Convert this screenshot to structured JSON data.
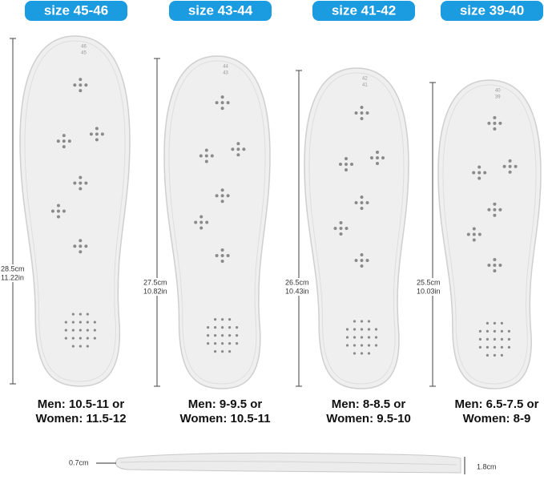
{
  "sizes": [
    {
      "label": "size 45-46",
      "top": [
        "46",
        "45"
      ],
      "length_cm": "28.5cm",
      "length_in": "11.22in",
      "men": "Men: 10.5-11 or",
      "women": "Women: 11.5-12"
    },
    {
      "label": "size 43-44",
      "top": [
        "44",
        "43"
      ],
      "length_cm": "27.5cm",
      "length_in": "10.82in",
      "men": "Men: 9-9.5 or",
      "women": "Women: 10.5-11"
    },
    {
      "label": "size 41-42",
      "top": [
        "42",
        "41"
      ],
      "length_cm": "26.5cm",
      "length_in": "10.43in",
      "men": "Men: 8-8.5 or",
      "women": "Women: 9.5-10"
    },
    {
      "label": "size 39-40",
      "top": [
        "40",
        "39"
      ],
      "length_cm": "25.5cm",
      "length_in": "10.03in",
      "men": "Men: 6.5-7.5 or",
      "women": "Women: 8-9"
    }
  ],
  "thickness": {
    "left": "0.7cm",
    "right": "1.8cm"
  }
}
